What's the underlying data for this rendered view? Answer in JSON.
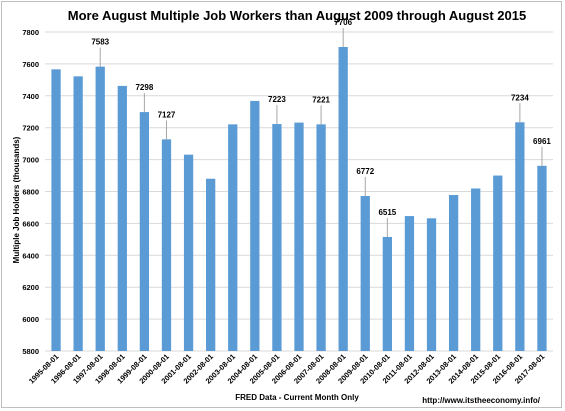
{
  "chart_data": {
    "type": "bar",
    "title": "More August Multiple Job Workers than August 2009 through August 2015",
    "xlabel": "FRED Data - Current Month Only",
    "ylabel": "Multiple Job Holders (thousands)",
    "ylim": [
      5800,
      7800
    ],
    "yticks": [
      5800,
      6000,
      6200,
      6400,
      6600,
      6800,
      7000,
      7200,
      7400,
      7600,
      7800
    ],
    "grid": true,
    "color": "#5b9bd5",
    "categories": [
      "1995-08-01",
      "1996-08-01",
      "1997-08-01",
      "1998-08-01",
      "1999-08-01",
      "2000-08-01",
      "2001-08-01",
      "2002-08-01",
      "2003-08-01",
      "2004-08-01",
      "2005-08-01",
      "2006-08-01",
      "2007-08-01",
      "2008-08-01",
      "2009-08-01",
      "2010-08-01",
      "2011-08-01",
      "2012-08-01",
      "2013-08-01",
      "2014-08-01",
      "2015-08-01",
      "2016-08-01",
      "2017-08-01"
    ],
    "values": [
      7566,
      7522,
      7583,
      7462,
      7298,
      7127,
      7031,
      6880,
      7221,
      7368,
      7223,
      7232,
      7221,
      7706,
      6772,
      6515,
      6646,
      6632,
      6778,
      6819,
      6900,
      7234,
      6961
    ],
    "data_labels": {
      "2": "7583",
      "4": "7298",
      "5": "7127",
      "10": "7223",
      "12": "7221",
      "13": "7706",
      "14": "6772",
      "15": "6515",
      "21": "7234",
      "22": "6961"
    },
    "source_note": "http://www.itstheeconomy.info/"
  }
}
